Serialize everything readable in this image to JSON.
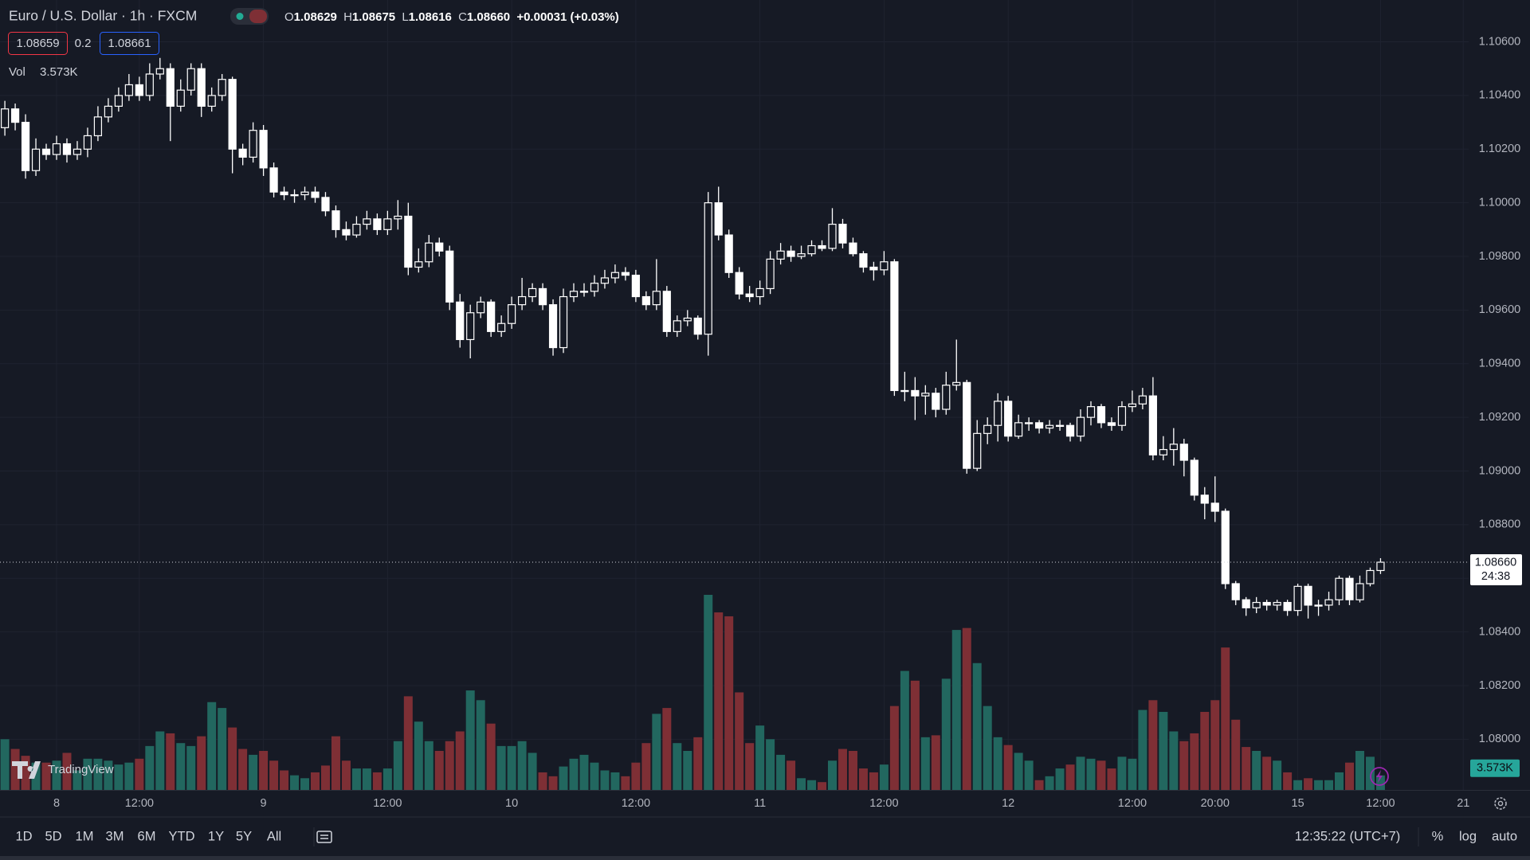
{
  "header": {
    "symbol": "Euro / U.S. Dollar · 1h · FXCM",
    "ohlc": [
      {
        "key": "O",
        "value": "1.08629"
      },
      {
        "key": "H",
        "value": "1.08675"
      },
      {
        "key": "L",
        "value": "1.08616"
      },
      {
        "key": "C",
        "value": "1.08660"
      }
    ],
    "change": "+0.00031 (+0.03%)",
    "sell": "1.08659",
    "spread": "0.2",
    "buy": "1.08661",
    "vol_label": "Vol",
    "vol_value": "3.573K"
  },
  "logo": "TradingView",
  "chart_data": {
    "type": "candlestick",
    "open": [
      1.1028,
      1.1035,
      1.103,
      1.1012,
      1.102,
      1.1018,
      1.1022,
      1.1018,
      1.102,
      1.1025,
      1.1032,
      1.1036,
      1.104,
      1.1044,
      1.104,
      1.1048,
      1.105,
      1.1036,
      1.1042,
      1.105,
      1.1036,
      1.104,
      1.1046,
      1.102,
      1.1017,
      1.1027,
      1.1013,
      1.1004,
      1.1003,
      1.1003,
      1.1004,
      1.1002,
      1.0997,
      1.099,
      1.0988,
      1.0992,
      1.0994,
      1.099,
      1.0994,
      1.0995,
      1.0976,
      1.0978,
      1.0985,
      1.0982,
      1.0963,
      1.0949,
      1.0959,
      1.0963,
      1.0952,
      1.0955,
      1.0962,
      1.0965,
      1.0968,
      1.0962,
      1.0946,
      1.0965,
      1.0967,
      1.0967,
      1.097,
      1.0972,
      1.0974,
      1.0973,
      1.0965,
      1.0962,
      1.0967,
      1.0952,
      1.0956,
      1.0957,
      1.0951,
      1.1,
      1.0988,
      1.0974,
      1.0966,
      1.0965,
      1.0968,
      1.0979,
      1.0982,
      1.098,
      1.0981,
      1.0984,
      1.0983,
      1.0992,
      1.0985,
      1.0981,
      1.0976,
      1.0975,
      1.0978,
      1.093,
      1.093,
      1.0928,
      1.0929,
      1.0923,
      1.0932,
      1.0933,
      1.0901,
      1.0914,
      1.0917,
      1.0926,
      1.0913,
      1.0918,
      1.0918,
      1.0916,
      1.0917,
      1.0917,
      1.0913,
      1.092,
      1.0924,
      1.0918,
      1.0917,
      1.0924,
      1.0925,
      1.0928,
      1.0906,
      1.0908,
      1.091,
      1.0904,
      1.0891,
      1.0888,
      1.0885,
      1.0858,
      1.0852,
      1.0849,
      1.0851,
      1.085,
      1.0851,
      1.0848,
      1.0857,
      1.085,
      1.085,
      1.0852,
      1.086,
      1.0852,
      1.0858,
      1.08629
    ],
    "high": [
      1.1038,
      1.1037,
      1.1033,
      1.1024,
      1.1022,
      1.1025,
      1.1024,
      1.1023,
      1.1028,
      1.1036,
      1.1039,
      1.1043,
      1.1048,
      1.1047,
      1.1052,
      1.1054,
      1.1052,
      1.1046,
      1.1052,
      1.1052,
      1.1043,
      1.1048,
      1.1047,
      1.1022,
      1.103,
      1.1029,
      1.1015,
      1.1006,
      1.1005,
      1.1006,
      1.1006,
      1.1004,
      1.0999,
      1.0993,
      1.0995,
      1.0997,
      1.0996,
      1.0997,
      1.1001,
      1.1,
      1.0983,
      1.0988,
      1.0987,
      1.0984,
      1.0966,
      1.0962,
      1.0965,
      1.0964,
      1.0958,
      1.0965,
      1.0972,
      1.097,
      1.097,
      1.0964,
      1.0968,
      1.097,
      1.097,
      1.0973,
      1.0975,
      1.0977,
      1.0976,
      1.0975,
      1.0967,
      1.0979,
      1.0969,
      1.0958,
      1.096,
      1.0958,
      1.1004,
      1.1006,
      1.099,
      1.0976,
      1.0969,
      1.0971,
      1.0982,
      1.0985,
      1.0984,
      1.0984,
      1.0986,
      1.0986,
      1.0998,
      1.0994,
      1.0987,
      1.0982,
      1.0978,
      1.0982,
      1.0979,
      1.0937,
      1.0935,
      1.0932,
      1.0931,
      1.0937,
      1.0949,
      1.0934,
      1.0919,
      1.092,
      1.0929,
      1.0928,
      1.0921,
      1.092,
      1.0919,
      1.0919,
      1.0919,
      1.0918,
      1.0923,
      1.0926,
      1.0925,
      1.092,
      1.0926,
      1.093,
      1.0931,
      1.0935,
      1.0913,
      1.0916,
      1.0912,
      1.0905,
      1.0894,
      1.0898,
      1.0886,
      1.0859,
      1.0853,
      1.0853,
      1.0852,
      1.0852,
      1.0852,
      1.0858,
      1.0858,
      1.0852,
      1.0855,
      1.0861,
      1.0861,
      1.0861,
      1.0864,
      1.08675
    ],
    "low": [
      1.1025,
      1.1027,
      1.1009,
      1.101,
      1.1016,
      1.1016,
      1.1015,
      1.1016,
      1.1017,
      1.1023,
      1.103,
      1.1034,
      1.1038,
      1.1038,
      1.1038,
      1.1046,
      1.1023,
      1.1034,
      1.104,
      1.1032,
      1.1034,
      1.1038,
      1.1011,
      1.1014,
      1.1015,
      1.101,
      1.1002,
      1.1001,
      1.1,
      1.1001,
      1.1,
      1.0995,
      1.0987,
      1.0986,
      1.0987,
      1.099,
      1.0988,
      1.0988,
      1.099,
      1.0973,
      1.0974,
      1.0976,
      1.098,
      1.096,
      1.0946,
      1.0942,
      1.0957,
      1.095,
      1.095,
      1.0953,
      1.096,
      1.0963,
      1.096,
      1.0943,
      1.0944,
      1.0963,
      1.0965,
      1.0965,
      1.0968,
      1.097,
      1.0971,
      1.0963,
      1.096,
      1.096,
      1.095,
      1.095,
      1.0954,
      1.0949,
      1.0943,
      1.0986,
      1.0972,
      1.0964,
      1.0963,
      1.0962,
      1.0966,
      1.0977,
      1.0978,
      1.0979,
      1.098,
      1.0982,
      1.0982,
      1.0983,
      1.098,
      1.0974,
      1.0971,
      1.0973,
      1.0928,
      1.0926,
      1.0919,
      1.0921,
      1.092,
      1.0921,
      1.093,
      1.0899,
      1.09,
      1.091,
      1.0911,
      1.0911,
      1.0912,
      1.0915,
      1.0914,
      1.0914,
      1.0915,
      1.0911,
      1.0911,
      1.0917,
      1.0916,
      1.0915,
      1.0915,
      1.0922,
      1.0923,
      1.0904,
      1.0904,
      1.0902,
      1.0898,
      1.0889,
      1.0882,
      1.0881,
      1.0856,
      1.085,
      1.0846,
      1.0847,
      1.0848,
      1.0848,
      1.0846,
      1.0846,
      1.0845,
      1.0846,
      1.0848,
      1.085,
      1.085,
      1.0851,
      1.0857,
      1.08616
    ],
    "close": [
      1.1035,
      1.103,
      1.1012,
      1.102,
      1.1018,
      1.1022,
      1.1018,
      1.102,
      1.1025,
      1.1032,
      1.1036,
      1.104,
      1.1044,
      1.104,
      1.1048,
      1.105,
      1.1036,
      1.1042,
      1.105,
      1.1036,
      1.104,
      1.1046,
      1.102,
      1.1017,
      1.1027,
      1.1013,
      1.1004,
      1.1003,
      1.1003,
      1.1004,
      1.1002,
      1.0997,
      1.099,
      1.0988,
      1.0992,
      1.0994,
      1.099,
      1.0994,
      1.0995,
      1.0976,
      1.0978,
      1.0985,
      1.0982,
      1.0963,
      1.0949,
      1.0959,
      1.0963,
      1.0952,
      1.0955,
      1.0962,
      1.0965,
      1.0968,
      1.0962,
      1.0946,
      1.0965,
      1.0967,
      1.0967,
      1.097,
      1.0972,
      1.0974,
      1.0973,
      1.0965,
      1.0962,
      1.0967,
      1.0952,
      1.0956,
      1.0957,
      1.0951,
      1.1,
      1.0988,
      1.0974,
      1.0966,
      1.0965,
      1.0968,
      1.0979,
      1.0982,
      1.098,
      1.0981,
      1.0984,
      1.0983,
      1.0992,
      1.0985,
      1.0981,
      1.0976,
      1.0975,
      1.0978,
      1.093,
      1.093,
      1.0928,
      1.0929,
      1.0923,
      1.0932,
      1.0933,
      1.0901,
      1.0914,
      1.0917,
      1.0926,
      1.0913,
      1.0918,
      1.0918,
      1.0916,
      1.0917,
      1.0917,
      1.0913,
      1.092,
      1.0924,
      1.0918,
      1.0917,
      1.0924,
      1.0925,
      1.0928,
      1.0906,
      1.0908,
      1.091,
      1.0904,
      1.0891,
      1.0888,
      1.0885,
      1.0858,
      1.0852,
      1.0849,
      1.0851,
      1.085,
      1.0851,
      1.0848,
      1.0857,
      1.085,
      1.085,
      1.0852,
      1.086,
      1.0852,
      1.0858,
      1.08629,
      1.0866
    ],
    "volume": [
      12480,
      10080,
      8400,
      6720,
      6720,
      7200,
      9120,
      4800,
      7680,
      7680,
      7200,
      6240,
      6720,
      7680,
      10800,
      14400,
      13920,
      11520,
      10800,
      13200,
      21600,
      20160,
      15360,
      10080,
      8640,
      9600,
      7200,
      4800,
      3600,
      2880,
      4320,
      6000,
      13200,
      7200,
      5280,
      5280,
      4320,
      5280,
      12000,
      23040,
      16800,
      12000,
      9600,
      12000,
      14400,
      24480,
      22080,
      16320,
      10800,
      10800,
      12000,
      9120,
      4320,
      3360,
      5760,
      7680,
      8640,
      6720,
      4800,
      4320,
      3360,
      6720,
      11520,
      18720,
      20160,
      11520,
      9600,
      12960,
      48000,
      43680,
      42720,
      24000,
      11520,
      15840,
      12480,
      8640,
      7200,
      2880,
      2400,
      1920,
      7200,
      10080,
      9600,
      5280,
      4320,
      6240,
      20640,
      29280,
      26880,
      12960,
      13440,
      27360,
      39360,
      39840,
      31200,
      20640,
      12960,
      11040,
      9120,
      7200,
      2400,
      3360,
      5280,
      6240,
      8160,
      7680,
      7200,
      5280,
      8160,
      7680,
      19680,
      22080,
      19200,
      14400,
      12000,
      13920,
      19200,
      22080,
      35040,
      17280,
      10560,
      9600,
      8160,
      7200,
      4320,
      2400,
      2880,
      2400,
      2400,
      4320,
      6720,
      9600,
      8160,
      3573
    ],
    "ylim": [
      1.07811,
      1.10756
    ],
    "yticks": [
      {
        "value": 1.106,
        "label": "1.10600"
      },
      {
        "value": 1.104,
        "label": "1.10400"
      },
      {
        "value": 1.102,
        "label": "1.10200"
      },
      {
        "value": 1.1,
        "label": "1.10000"
      },
      {
        "value": 1.098,
        "label": "1.09800"
      },
      {
        "value": 1.096,
        "label": "1.09600"
      },
      {
        "value": 1.094,
        "label": "1.09400"
      },
      {
        "value": 1.092,
        "label": "1.09200"
      },
      {
        "value": 1.09,
        "label": "1.09000"
      },
      {
        "value": 1.088,
        "label": "1.08800"
      },
      {
        "value": 1.086,
        "label": "1.08600"
      },
      {
        "value": 1.084,
        "label": "1.08400"
      },
      {
        "value": 1.082,
        "label": "1.08200"
      },
      {
        "value": 1.08,
        "label": "1.08000"
      }
    ],
    "xticks": [
      {
        "value": 5,
        "label": "8"
      },
      {
        "value": 13,
        "label": "12:00"
      },
      {
        "value": 25,
        "label": "9"
      },
      {
        "value": 37,
        "label": "12:00"
      },
      {
        "value": 49,
        "label": "10"
      },
      {
        "value": 61,
        "label": "12:00"
      },
      {
        "value": 73,
        "label": "11"
      },
      {
        "value": 85,
        "label": "12:00"
      },
      {
        "value": 97,
        "label": "12"
      },
      {
        "value": 109,
        "label": "12:00"
      },
      {
        "value": 117,
        "label": "20:00"
      },
      {
        "value": 125,
        "label": "15"
      },
      {
        "value": 133,
        "label": "12:00"
      },
      {
        "value": 141,
        "label": "21"
      }
    ],
    "grid": true,
    "candle_color": "#ffffff",
    "volume_up_color": "#22675f",
    "volume_down_color": "#7e2f35",
    "last_price_label": "1.08660",
    "countdown": "24:38",
    "volume_label": "3.573K"
  },
  "toolbar": {
    "ranges": [
      "1D",
      "5D",
      "1M",
      "3M",
      "6M",
      "YTD",
      "1Y",
      "5Y",
      "All"
    ],
    "clock": "12:35:22 (UTC+7)",
    "options": [
      "%",
      "log",
      "auto"
    ]
  }
}
